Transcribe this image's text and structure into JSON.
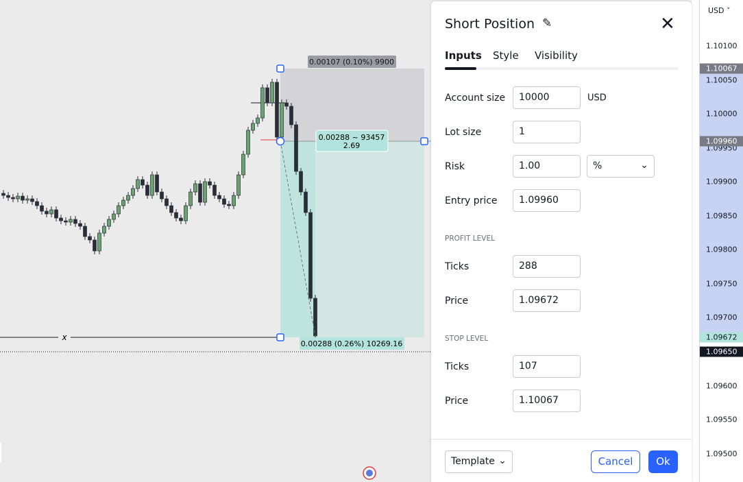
{
  "price_scale": {
    "currency": "USD",
    "labels": [
      "1.10100",
      "1.10050",
      "1.10000",
      "1.09950",
      "1.09900",
      "1.09850",
      "1.09800",
      "1.09750",
      "1.09700",
      "1.09600",
      "1.09550",
      "1.09500"
    ],
    "tags": [
      "1.10067",
      "1.09960",
      "1.09672",
      "1.09650"
    ]
  },
  "chart": {
    "top_label": "0.00107 (0.10%) 9900",
    "position_label": [
      "0.00288 ~ 93457",
      "2.69"
    ],
    "bottom_label": "0.00288 (0.26%) 10269.16",
    "marker": "x"
  },
  "dialog": {
    "title": "Short Position",
    "tabs": [
      "Inputs",
      "Style",
      "Visibility"
    ],
    "account_size": {
      "label": "Account size",
      "value": "10000",
      "unit": "USD"
    },
    "lot_size": {
      "label": "Lot size",
      "value": "1"
    },
    "risk": {
      "label": "Risk",
      "value": "1.00",
      "unit": "%"
    },
    "entry_price": {
      "label": "Entry price",
      "value": "1.09960"
    },
    "profit_level": {
      "heading": "PROFIT LEVEL",
      "ticks_label": "Ticks",
      "ticks": "288",
      "price_label": "Price",
      "price": "1.09672"
    },
    "stop_level": {
      "heading": "STOP LEVEL",
      "ticks_label": "Ticks",
      "ticks": "107",
      "price_label": "Price",
      "price": "1.10067"
    },
    "footer": {
      "template": "Template",
      "cancel": "Cancel",
      "ok": "Ok"
    }
  }
}
